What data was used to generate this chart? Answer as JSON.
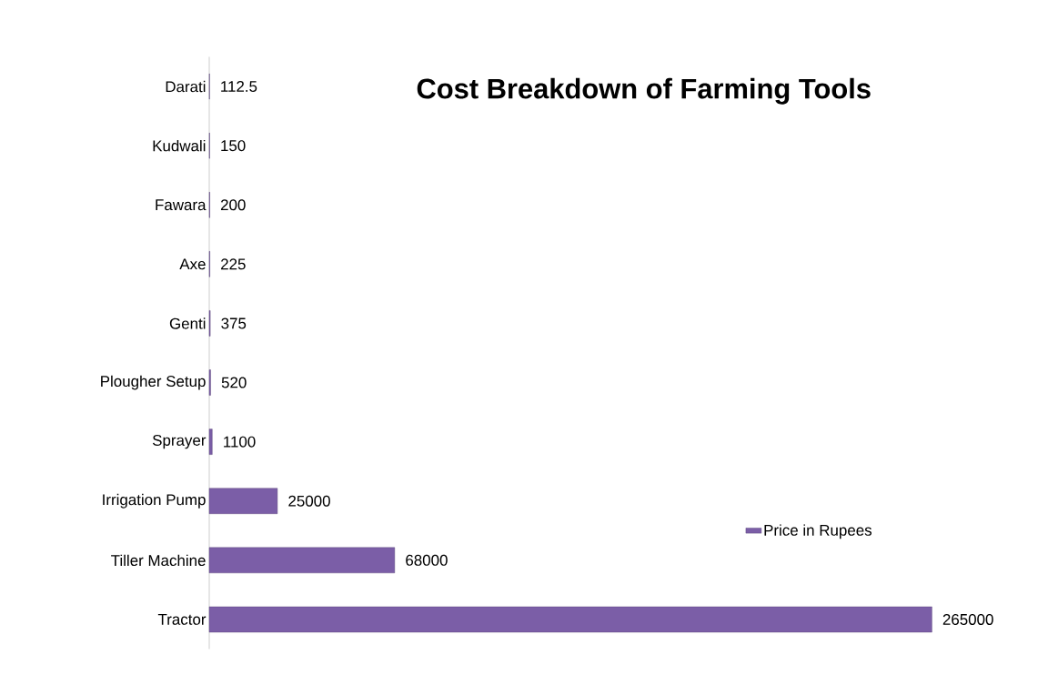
{
  "chart_data": {
    "type": "bar",
    "orientation": "horizontal",
    "title": "Cost Breakdown of Farming Tools",
    "categories": [
      "Darati",
      "Kudwali",
      "Fawara",
      "Axe",
      "Genti",
      "Plougher Setup",
      "Sprayer",
      "Irrigation Pump",
      "Tiller Machine",
      "Tractor"
    ],
    "series": [
      {
        "name": "Price in Rupees",
        "color": "#7b5ea7",
        "values": [
          112.5,
          150,
          200,
          225,
          375,
          520,
          1100,
          25000,
          68000,
          265000
        ]
      }
    ],
    "data_labels": true,
    "legend": "right"
  }
}
